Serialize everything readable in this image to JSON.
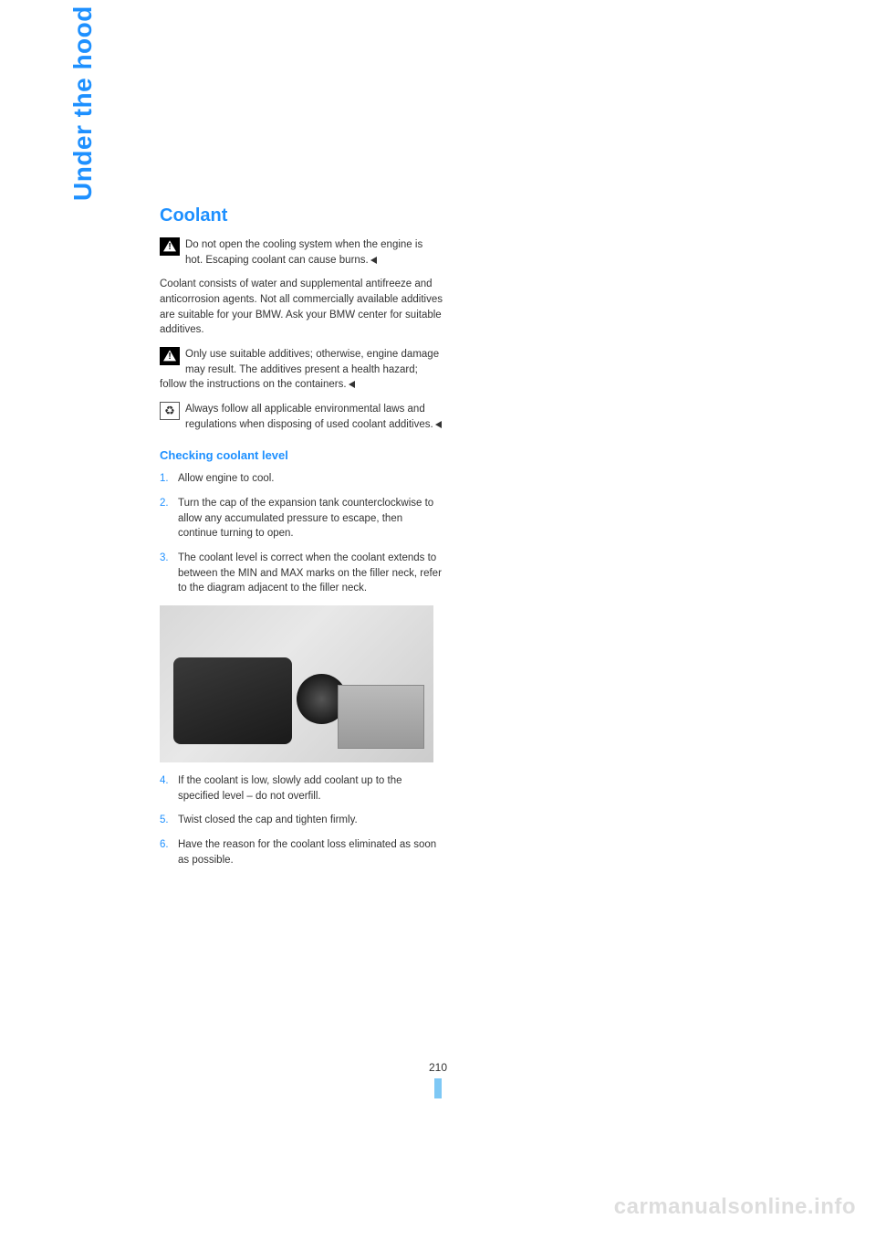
{
  "colors": {
    "accent": "#1e90ff",
    "text": "#333333",
    "watermark": "#dddddd",
    "page_marker": "#7ec8f5",
    "background": "#ffffff"
  },
  "typography": {
    "body_fontsize_pt": 11.5,
    "heading_fontsize_pt": 20,
    "subheading_fontsize_pt": 13,
    "sidetab_fontsize_pt": 28,
    "line_height": 1.45
  },
  "side_tab": "Under the hood",
  "section": {
    "title": "Coolant",
    "warning1": "Do not open the cooling system when the engine is hot. Escaping coolant can cause burns.",
    "paragraph1": "Coolant consists of water and supplemental antifreeze and anticorrosion agents. Not all commercially available additives are suitable for your BMW. Ask your BMW center for suitable additives.",
    "warning2": "Only use suitable additives; otherwise, engine damage may result. The additives present a health hazard; follow the instructions on the containers.",
    "recycle": "Always follow all applicable environmental laws and regulations when disposing of used coolant additives."
  },
  "subsection": {
    "heading": "Checking coolant level",
    "items": [
      {
        "num": "1.",
        "text": "Allow engine to cool."
      },
      {
        "num": "2.",
        "text": "Turn the cap of the expansion tank counterclockwise to allow any accumulated pressure to escape, then continue turning to open."
      },
      {
        "num": "3.",
        "text": "The coolant level is correct when the coolant extends to between the MIN and MAX marks on the filler neck, refer to the diagram adjacent to the filler neck."
      },
      {
        "num": "4.",
        "text": "If the coolant is low, slowly add coolant up to the specified level – do not overfill."
      },
      {
        "num": "5.",
        "text": "Twist closed the cap and tighten firmly."
      },
      {
        "num": "6.",
        "text": "Have the reason for the coolant loss eliminated as soon as possible."
      }
    ]
  },
  "page_number": "210",
  "watermark": "carmanualsonline.info"
}
